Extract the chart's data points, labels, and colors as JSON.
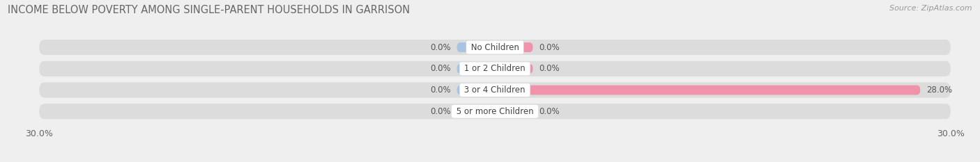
{
  "title": "INCOME BELOW POVERTY AMONG SINGLE-PARENT HOUSEHOLDS IN GARRISON",
  "source": "Source: ZipAtlas.com",
  "categories": [
    "No Children",
    "1 or 2 Children",
    "3 or 4 Children",
    "5 or more Children"
  ],
  "single_father": [
    0.0,
    0.0,
    0.0,
    0.0
  ],
  "single_mother": [
    0.0,
    0.0,
    28.0,
    0.0
  ],
  "xlim": 30.0,
  "stub_size": 2.5,
  "father_color": "#a8c4e0",
  "mother_color": "#f093aa",
  "row_bg_color": "#e8e8e8",
  "bg_color": "#efefef",
  "title_fontsize": 10.5,
  "source_fontsize": 8,
  "label_fontsize": 8.5,
  "tick_fontsize": 9,
  "category_fontsize": 8.5
}
